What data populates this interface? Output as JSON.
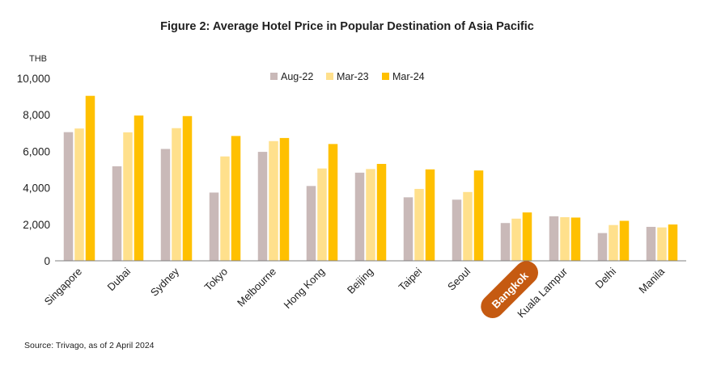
{
  "chart_data": {
    "type": "bar",
    "title": "Figure 2: Average Hotel Price in Popular Destination of Asia Pacific",
    "ylabel": "THB",
    "ylim": [
      0,
      10000
    ],
    "yticks": [
      "0",
      "2,000",
      "4,000",
      "6,000",
      "8,000",
      "10,000"
    ],
    "ytick_values": [
      0,
      2000,
      4000,
      6000,
      8000,
      10000
    ],
    "grid": false,
    "legend_position": "top",
    "categories": [
      "Singapore",
      "Dubai",
      "Sydney",
      "Tokyo",
      "Melbourne",
      "Hong Kong",
      "Beijing",
      "Taipei",
      "Seoul",
      "Bangkok",
      "Kuala Lampur",
      "Delhi",
      "Manila"
    ],
    "highlight_category": "Bangkok",
    "series": [
      {
        "name": "Aug-22",
        "color": "#C9B9B8",
        "values": [
          7050,
          5180,
          6130,
          3740,
          5970,
          4100,
          4830,
          3480,
          3350,
          2070,
          2440,
          1520,
          1860
        ]
      },
      {
        "name": "Mar-23",
        "color": "#FFE08C",
        "values": [
          7250,
          7040,
          7270,
          5720,
          6560,
          5060,
          5030,
          3940,
          3770,
          2310,
          2390,
          1960,
          1830
        ]
      },
      {
        "name": "Mar-24",
        "color": "#FFC000",
        "values": [
          9040,
          7960,
          7930,
          6840,
          6730,
          6400,
          5310,
          5010,
          4950,
          2650,
          2370,
          2190,
          1990
        ]
      }
    ],
    "source": "Source: Trivago, as of 2 April 2024",
    "colors": {
      "axis": "#7f7f7f",
      "highlight_pill": "#C55A11"
    }
  }
}
